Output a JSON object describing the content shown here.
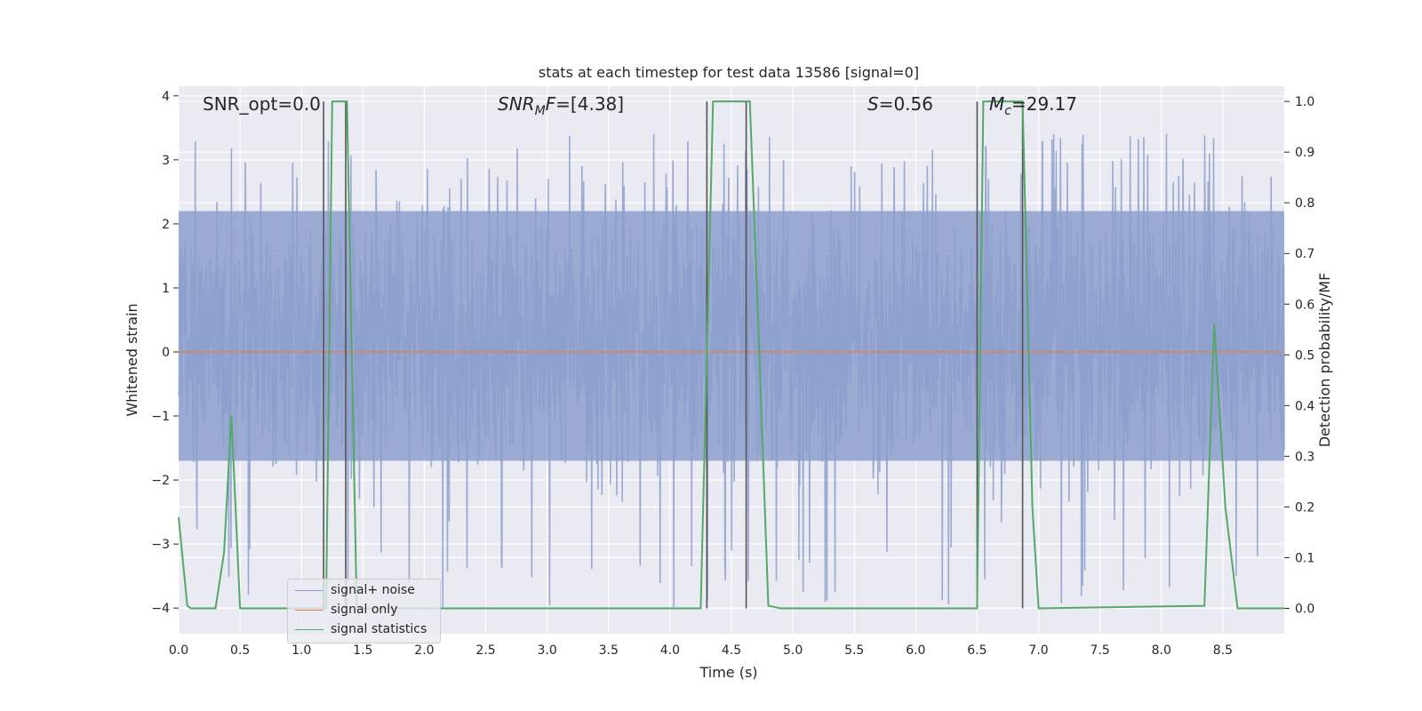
{
  "chart_data": {
    "type": "line",
    "title": "stats at each timestep for test data 13586 [signal=0]",
    "xlabel": "Time (s)",
    "ylabel_left": "Whitened strain",
    "ylabel_right": "Detection probability/MF",
    "xlim": [
      0.0,
      9.0
    ],
    "ylim_left": [
      -4.4,
      4.15
    ],
    "ylim_right": [
      -0.05,
      1.03
    ],
    "x_ticks": [
      "0.0",
      "0.5",
      "1.0",
      "1.5",
      "2.0",
      "2.5",
      "3.0",
      "3.5",
      "4.0",
      "4.5",
      "5.0",
      "5.5",
      "6.0",
      "6.5",
      "7.0",
      "7.5",
      "8.0",
      "8.5"
    ],
    "y_ticks_left": [
      "−4",
      "−3",
      "−2",
      "−1",
      "0",
      "1",
      "2",
      "3",
      "4"
    ],
    "y_ticks_right": [
      "0.0",
      "0.1",
      "0.2",
      "0.3",
      "0.4",
      "0.5",
      "0.6",
      "0.7",
      "0.8",
      "0.9",
      "1.0"
    ],
    "grid": true,
    "legend_position": "lower-left",
    "annotations": [
      {
        "id": "snr_opt",
        "text": "SNR_opt=0.0"
      },
      {
        "id": "snr_mf",
        "text": "SNR_MF=[4.38]"
      },
      {
        "id": "s",
        "text": "S=0.56"
      },
      {
        "id": "mc",
        "text": "M_c=29.17"
      }
    ],
    "series": [
      {
        "name": "signal+ noise",
        "axis": "left",
        "color": "#8c9fcc",
        "description_shape": "dense noise band",
        "envelope_typical": [
          -1.7,
          2.2
        ],
        "envelope_extreme": [
          -4.0,
          3.4
        ]
      },
      {
        "name": "signal only",
        "axis": "left",
        "color": "#dd8452",
        "x": [
          0.0,
          9.0
        ],
        "y": [
          0.0,
          0.0
        ]
      },
      {
        "name": "signal statistics",
        "axis": "right",
        "color": "#55a868",
        "x": [
          0.0,
          0.07,
          0.1,
          0.3,
          0.37,
          0.43,
          0.5,
          0.6,
          1.2,
          1.25,
          1.3,
          1.37,
          1.45,
          1.6,
          4.25,
          4.35,
          4.4,
          4.65,
          4.72,
          4.8,
          4.9,
          6.5,
          6.55,
          6.6,
          6.87,
          6.95,
          7.0,
          8.35,
          8.43,
          8.52,
          8.62,
          9.0
        ],
        "y": [
          0.18,
          0.005,
          0.0,
          0.0,
          0.11,
          0.38,
          0.0,
          0.0,
          0.0,
          1.0,
          1.0,
          1.0,
          0.0,
          0.0,
          0.0,
          1.0,
          1.0,
          1.0,
          0.55,
          0.005,
          0.0,
          0.0,
          1.0,
          1.0,
          1.0,
          0.2,
          0.0,
          0.005,
          0.56,
          0.2,
          0.0,
          0.0
        ]
      }
    ],
    "vertical_markers_x": [
      1.18,
      1.36,
      4.3,
      4.62,
      6.5,
      6.87
    ]
  }
}
